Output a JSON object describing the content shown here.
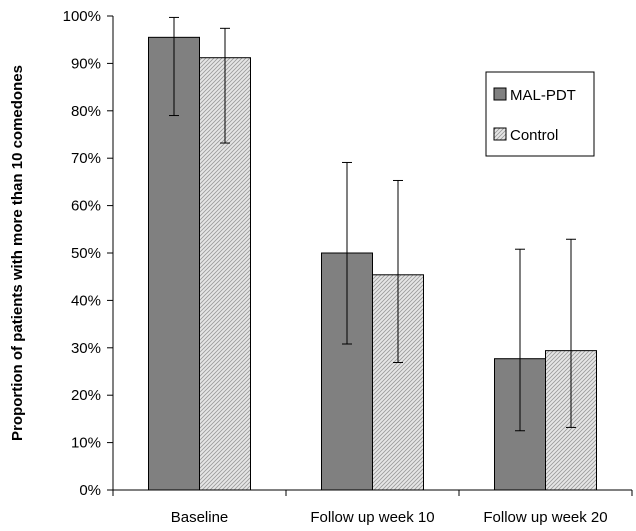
{
  "chart_data": {
    "type": "bar",
    "ylabel": "Proportion of patients with more than 10 comedones",
    "categories": [
      "Baseline",
      "Follow up week 10",
      "Follow up week 20"
    ],
    "yticks": [
      "0%",
      "10%",
      "20%",
      "30%",
      "40%",
      "50%",
      "60%",
      "70%",
      "80%",
      "90%",
      "100%"
    ],
    "ylim": [
      0,
      100
    ],
    "series": [
      {
        "name": "MAL-PDT",
        "color": "#808080",
        "pattern": "solid",
        "values": [
          95.5,
          50,
          27.7
        ],
        "error_low": [
          79,
          30.8,
          12.5
        ],
        "error_high": [
          99.7,
          69.1,
          50.8
        ]
      },
      {
        "name": "Control",
        "color": "#d8d8d8",
        "pattern": "hatched",
        "values": [
          91.2,
          45.4,
          29.4
        ],
        "error_low": [
          73.2,
          26.9,
          13.2
        ],
        "error_high": [
          97.4,
          65.3,
          52.9
        ]
      }
    ],
    "legend": {
      "position": "right",
      "entries": [
        "MAL-PDT",
        "Control"
      ]
    },
    "grid": false
  }
}
